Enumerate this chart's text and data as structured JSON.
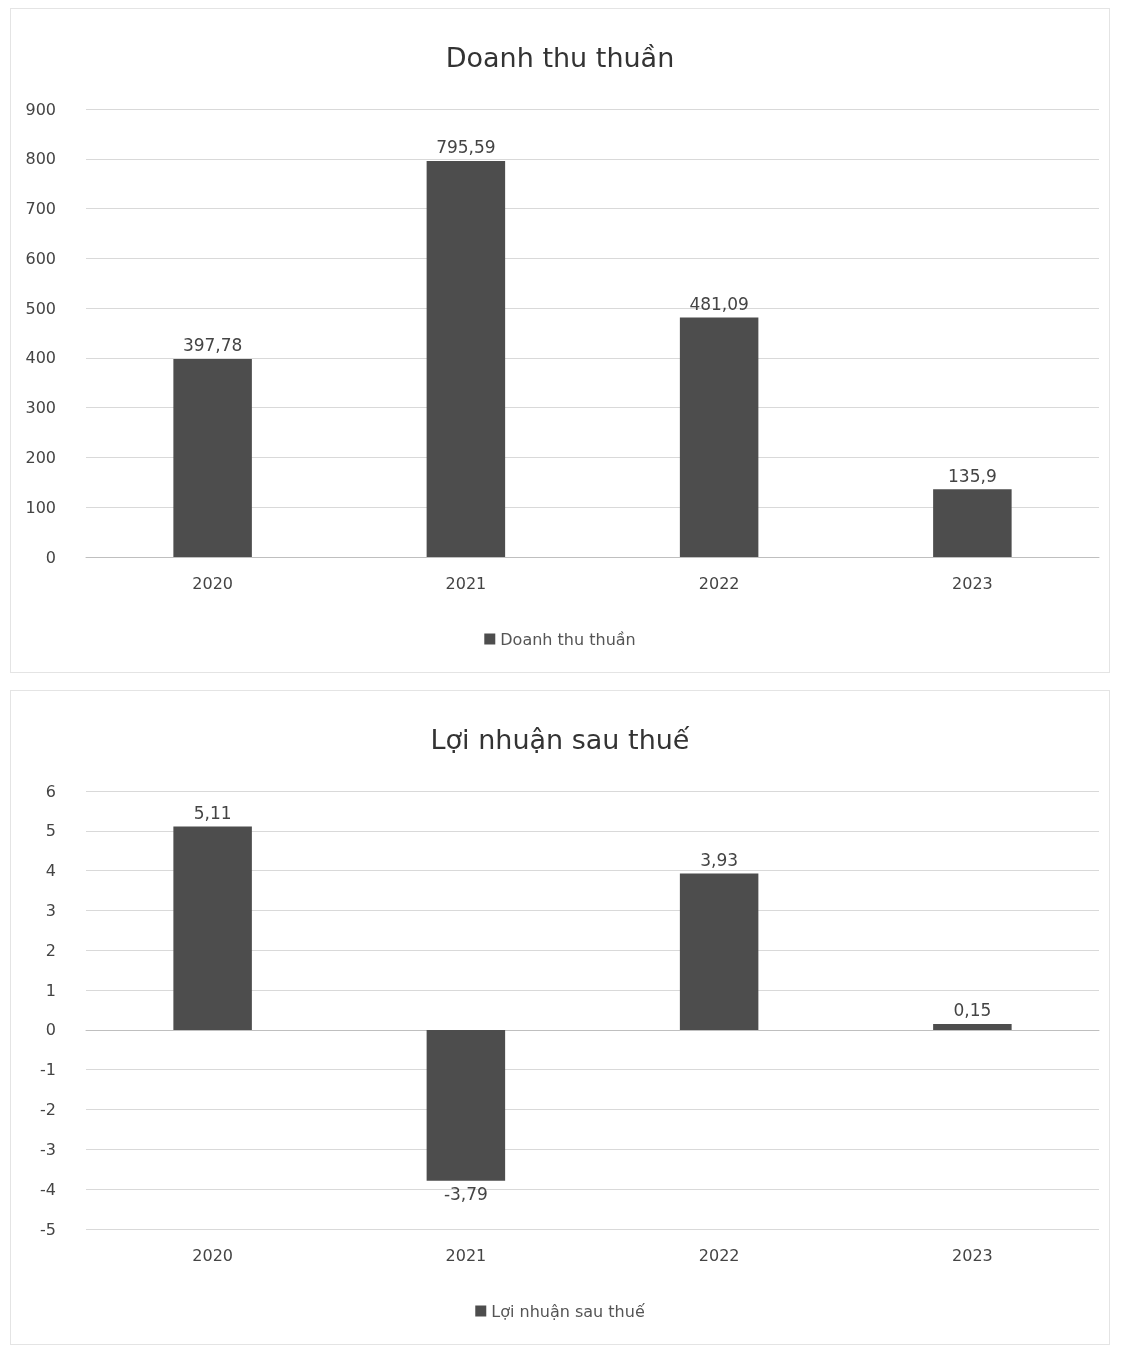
{
  "chart_data": [
    {
      "type": "bar",
      "title": "Doanh thu thuần",
      "categories": [
        "2020",
        "2021",
        "2022",
        "2023"
      ],
      "series": [
        {
          "name": "Doanh thu thuần",
          "color": "#4d4d4d",
          "values": [
            397.78,
            795.59,
            481.09,
            135.9
          ],
          "value_labels": [
            "397,78",
            "795,59",
            "481,09",
            "135,9"
          ]
        }
      ],
      "ylim": [
        0,
        900
      ],
      "yticks": [
        0,
        100,
        200,
        300,
        400,
        500,
        600,
        700,
        800,
        900
      ],
      "grid": "y",
      "legend": "bottom"
    },
    {
      "type": "bar",
      "title": "Lợi nhuận sau thuế",
      "categories": [
        "2020",
        "2021",
        "2022",
        "2023"
      ],
      "series": [
        {
          "name": "Lợi nhuận sau thuế",
          "color": "#4d4d4d",
          "values": [
            5.11,
            -3.79,
            3.93,
            0.15
          ],
          "value_labels": [
            "5,11",
            "-3,79",
            "3,93",
            "0,15"
          ]
        }
      ],
      "ylim": [
        -5,
        6
      ],
      "yticks": [
        -5,
        -4,
        -3,
        -2,
        -1,
        0,
        1,
        2,
        3,
        4,
        5,
        6
      ],
      "grid": "y",
      "legend": "bottom"
    }
  ]
}
